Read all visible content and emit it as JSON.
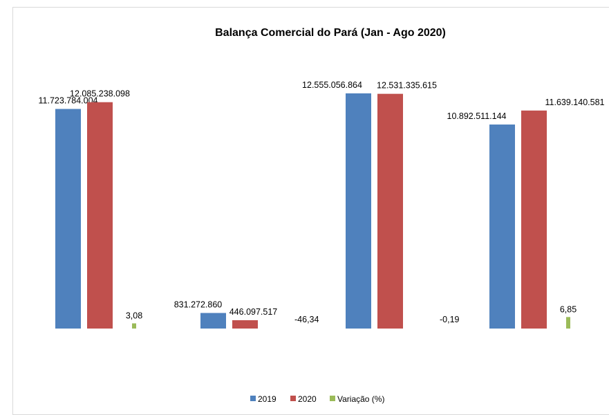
{
  "chart_data": {
    "type": "bar",
    "title": "Balança Comercial do Pará (Jan - Ago 2020)",
    "categories": [
      "",
      "",
      "",
      ""
    ],
    "series": [
      {
        "name": "2019",
        "color": "#4F81BD",
        "values": [
          11723784004,
          831272860,
          12555056864,
          10892511144
        ],
        "labels": [
          "11.723.784.004",
          "831.272.860",
          "12.555.056.864",
          "10.892.511.144"
        ]
      },
      {
        "name": "2020",
        "color": "#C0504D",
        "values": [
          12085238098,
          446097517,
          12531335615,
          11639140581
        ],
        "labels": [
          "12.085.238.098",
          "446.097.517",
          "12.531.335.615",
          "11.639.140.581"
        ]
      },
      {
        "name": "Variação (%)",
        "color": "#9BBB59",
        "values": [
          3.08,
          -46.34,
          -0.19,
          6.85
        ],
        "labels": [
          "3,08",
          "-46,34",
          "-0,19",
          "6,85"
        ]
      }
    ],
    "legend_position": "bottom",
    "grid": false
  }
}
